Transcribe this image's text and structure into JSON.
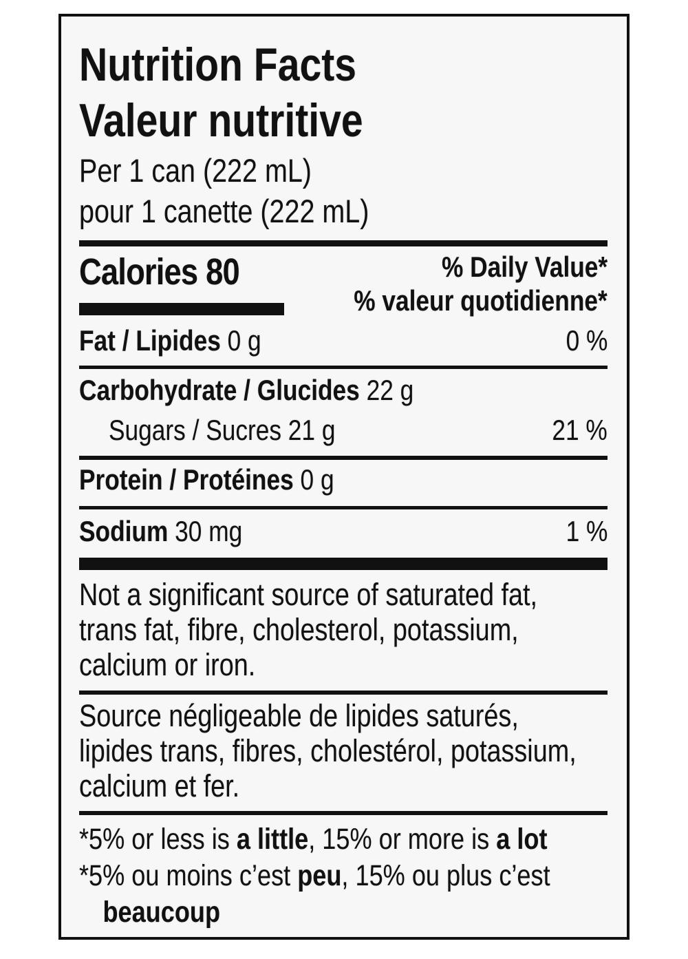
{
  "title_en": "Nutrition Facts",
  "title_fr": "Valeur nutritive",
  "serving_en": "Per 1 can (222 mL)",
  "serving_fr": "pour 1 canette (222 mL)",
  "calories": {
    "label": "Calories",
    "value": "80"
  },
  "dv_header_en": "% Daily Value*",
  "dv_header_fr": "% valeur quotidienne*",
  "nutrients": [
    {
      "label": "Fat / Lipides",
      "amount": "0 g",
      "dv": "0 %"
    },
    {
      "label": "Carbohydrate / Glucides",
      "amount": "22 g",
      "dv": ""
    },
    {
      "label": "Sugars / Sucres",
      "amount": "21 g",
      "dv": "21 %"
    },
    {
      "label": "Protein / Protéines",
      "amount": "0 g",
      "dv": ""
    },
    {
      "label": "Sodium",
      "amount": "30 mg",
      "dv": "1 %"
    }
  ],
  "note_en": [
    "Not a significant source of saturated fat,",
    "trans fat, fibre, cholesterol, potassium,",
    "calcium or iron."
  ],
  "note_fr": [
    "Source négligeable de lipides saturés,",
    "lipides trans, fibres, cholestérol, potassium,",
    "calcium et fer."
  ],
  "footer": {
    "en_pre": "*5% or less is ",
    "en_b1": "a little",
    "en_mid": ", 15% or more is ",
    "en_b2": "a lot",
    "fr_pre": "*5% ou moins c’est ",
    "fr_b1": "peu",
    "fr_mid": ", 15% ou plus c’est",
    "fr_b2": "beaucoup"
  }
}
